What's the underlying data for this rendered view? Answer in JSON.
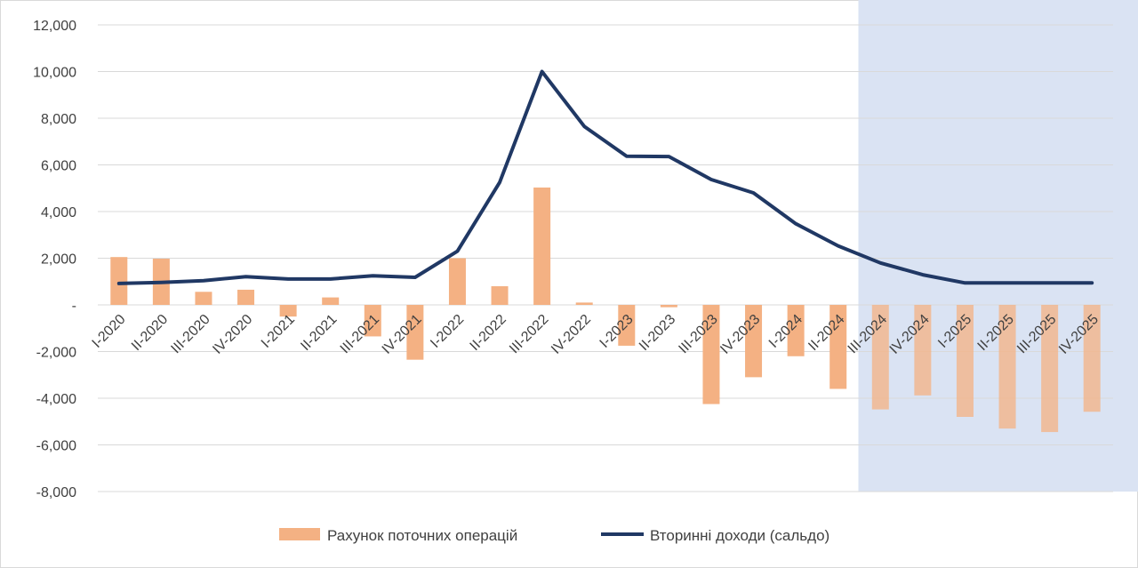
{
  "chart_data": {
    "type": "bar",
    "categories": [
      "I-2020",
      "II-2020",
      "III-2020",
      "IV-2020",
      "I-2021",
      "II-2021",
      "III-2021",
      "IV-2021",
      "I-2022",
      "II-2022",
      "III-2022",
      "IV-2022",
      "I-2023",
      "II-2023",
      "III-2023",
      "IV-2023",
      "I-2024",
      "II-2024",
      "III-2024",
      "IV-2024",
      "I-2025",
      "II-2025",
      "III-2025",
      "IV-2025"
    ],
    "series": [
      {
        "name": "Рахунок поточних операцій",
        "type": "bar",
        "color": "#f4b183",
        "values": [
          2050,
          1980,
          560,
          650,
          -500,
          320,
          -1350,
          -2350,
          2000,
          800,
          5030,
          100,
          -1750,
          -100,
          -4250,
          -3100,
          -2200,
          -3600,
          -4480,
          -3880,
          -4800,
          -5300,
          -5450,
          -4580
        ]
      },
      {
        "name": "Вторинні доходи (сальдо)",
        "type": "line",
        "color": "#203864",
        "values": [
          920,
          960,
          1040,
          1210,
          1110,
          1110,
          1250,
          1180,
          2300,
          5250,
          10000,
          7650,
          6370,
          6360,
          5370,
          4800,
          3480,
          2530,
          1800,
          1290,
          940,
          940,
          940,
          940
        ]
      }
    ],
    "y_ticks": [
      "12,000",
      "10,000",
      "8,000",
      "6,000",
      "4,000",
      "2,000",
      "-",
      "-2,000",
      "-4,000",
      "-6,000",
      "-8,000"
    ],
    "ylim": [
      -8000,
      12000
    ],
    "forecast_shaded_from_index": 18,
    "forecast_color": "#dae3f3",
    "grid": true,
    "legend_position": "bottom"
  }
}
